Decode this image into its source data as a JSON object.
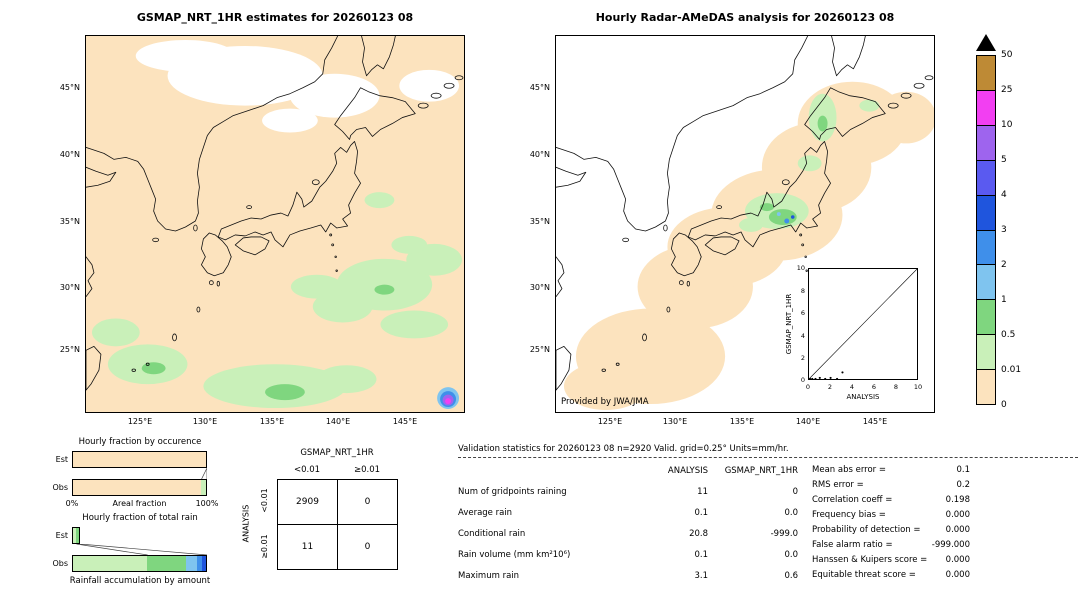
{
  "left_map": {
    "title": "GSMAP_NRT_1HR estimates for 20260123 08",
    "lat_ticks": [
      "45°N",
      "40°N",
      "35°N",
      "30°N",
      "25°N"
    ],
    "lon_ticks": [
      "125°E",
      "130°E",
      "135°E",
      "140°E",
      "145°E"
    ]
  },
  "right_map": {
    "title": "Hourly Radar-AMeDAS analysis for 20260123 08",
    "lat_ticks": [
      "45°N",
      "40°N",
      "35°N",
      "30°N",
      "25°N"
    ],
    "lon_ticks": [
      "125°E",
      "130°E",
      "135°E",
      "140°E",
      "145°E"
    ],
    "credit": "Provided by JWA/JMA",
    "inset": {
      "ylabel": "GSMAP_NRT_1HR",
      "xlabel": "ANALYSIS",
      "ticks": [
        "0",
        "2",
        "4",
        "6",
        "8",
        "10"
      ]
    }
  },
  "colorbar": {
    "labels": [
      "50",
      "25",
      "10",
      "5",
      "4",
      "3",
      "2",
      "1",
      "0.5",
      "0.01",
      "0"
    ],
    "colors_top_to_bottom": [
      "#BE8A35",
      "#F23FF2",
      "#9E64EE",
      "#5A5AF0",
      "#1F55DD",
      "#3F8FEA",
      "#7FC4EF",
      "#7FD67F",
      "#C9F0B9",
      "#FCE3BE"
    ],
    "overflow_arrow_color": "#000000"
  },
  "fraction_charts": {
    "occurrence": {
      "title": "Hourly fraction by occurence",
      "row_labels": [
        "Est",
        "Obs"
      ],
      "x_left": "0%",
      "x_right": "100%",
      "xlabel": "Areal fraction",
      "est": {
        "scale": 1.0,
        "segments": [
          {
            "color": "#FCE3BE",
            "frac": 1.0
          }
        ]
      },
      "obs": {
        "scale": 1.0,
        "segments": [
          {
            "color": "#FCE3BE",
            "frac": 0.96
          },
          {
            "color": "#C9F0B9",
            "frac": 0.04
          }
        ]
      },
      "connectors": [
        {
          "from": 1.0,
          "to": 0.96
        },
        {
          "from": 1.0,
          "to": 1.0
        }
      ]
    },
    "total_rain": {
      "title": "Hourly fraction of total rain",
      "row_labels": [
        "Est",
        "Obs"
      ],
      "caption": "Rainfall accumulation by amount",
      "est": {
        "scale": 0.06,
        "segments": [
          {
            "color": "#C9F0B9",
            "frac": 0.55
          },
          {
            "color": "#7FD67F",
            "frac": 0.45
          }
        ]
      },
      "obs": {
        "scale": 1.0,
        "segments": [
          {
            "color": "#C9F0B9",
            "frac": 0.56
          },
          {
            "color": "#7FD67F",
            "frac": 0.29
          },
          {
            "color": "#7FC4EF",
            "frac": 0.08
          },
          {
            "color": "#3F8FEA",
            "frac": 0.04
          },
          {
            "color": "#1F55DD",
            "frac": 0.03
          }
        ]
      },
      "connectors": [
        {
          "from": 0.033,
          "to": 0.56
        },
        {
          "from": 0.06,
          "to": 1.0
        }
      ]
    }
  },
  "contingency": {
    "col_group": "GSMAP_NRT_1HR",
    "row_group": "ANALYSIS",
    "col_labels": [
      "<0.01",
      "≥0.01"
    ],
    "row_labels": [
      "<0.01",
      "≥0.01"
    ],
    "values": [
      [
        "2909",
        "0"
      ],
      [
        "11",
        "0"
      ]
    ]
  },
  "stats": {
    "title": "Validation statistics for 20260123 08  n=2920 Valid. grid=0.25° Units=mm/hr.",
    "table": {
      "col_headers": [
        "ANALYSIS",
        "GSMAP_NRT_1HR"
      ],
      "rows": [
        {
          "label": "Num of gridpoints raining",
          "analysis": "11",
          "gsmap": "0"
        },
        {
          "label": "Average rain",
          "analysis": "0.1",
          "gsmap": "0.0"
        },
        {
          "label": "Conditional rain",
          "analysis": "20.8",
          "gsmap": "-999.0"
        },
        {
          "label": "Rain volume (mm km²10⁶)",
          "analysis": "0.1",
          "gsmap": "0.0"
        },
        {
          "label": "Maximum rain",
          "analysis": "3.1",
          "gsmap": "0.6"
        }
      ]
    },
    "metrics": [
      {
        "label": "Mean abs error =",
        "value": "0.1"
      },
      {
        "label": "RMS error =",
        "value": "0.2"
      },
      {
        "label": "Correlation coeff =",
        "value": "0.198"
      },
      {
        "label": "Frequency bias =",
        "value": "0.000"
      },
      {
        "label": "Probability of detection =",
        "value": "0.000"
      },
      {
        "label": "False alarm ratio =",
        "value": "-999.000"
      },
      {
        "label": "Hanssen & Kuipers score =",
        "value": "0.000"
      },
      {
        "label": "Equitable threat score =",
        "value": "0.000"
      }
    ]
  },
  "chart_data": [
    {
      "type": "heatmap",
      "name": "gsmap-estimate-map",
      "title": "GSMAP_NRT_1HR estimates for 20260123 08",
      "units": "mm/hr",
      "lon_ticks": [
        125,
        130,
        135,
        140,
        145
      ],
      "lat_ticks": [
        45,
        40,
        35,
        30,
        25
      ],
      "scale_breaks": [
        0,
        0.01,
        0.5,
        1,
        2,
        3,
        4,
        5,
        10,
        25,
        50
      ],
      "summary": "Field ~0 mm/hr (peach) over almost the whole Japan region; 0.01-0.5 mm/hr patches over the Pacific southeast of Japan, south of 30N and near Taiwan; one small intense cell (~5-10 mm/hr core) near 146E 23N; white no-data areas north of ~46N."
    },
    {
      "type": "heatmap",
      "name": "radar-amedas-map",
      "title": "Hourly Radar-AMeDAS analysis for 20260123 08",
      "units": "mm/hr",
      "summary": "White outside radar coverage; 0 mm/hr (peach) band along the Japanese archipelago; 0.01-0.5 mm/hr over central Honshu and western Hokkaido with small embedded cells up to ~3 mm/hr; maximum 3.1 mm/hr."
    },
    {
      "type": "scatter",
      "name": "inset-validation-scatter",
      "xlabel": "ANALYSIS",
      "ylabel": "GSMAP_NRT_1HR",
      "xlim": [
        0,
        10
      ],
      "ylim": [
        0,
        10
      ],
      "reference_line": "y = x",
      "points": [
        [
          0.1,
          0
        ],
        [
          0.3,
          0
        ],
        [
          0.6,
          0
        ],
        [
          1.0,
          0.1
        ],
        [
          1.5,
          0
        ],
        [
          2.0,
          0.1
        ],
        [
          2.6,
          0
        ],
        [
          3.1,
          0.6
        ]
      ]
    },
    {
      "type": "bar",
      "name": "hourly-fraction-by-occurrence",
      "title": "Hourly fraction by occurence",
      "categories": [
        "Est",
        "Obs"
      ],
      "note": "stacked areal fraction by rain-rate class, 0% to 100%",
      "est_fractions": {
        "0": 1.0
      },
      "obs_fractions": {
        "0": 0.96,
        "0.01-0.5": 0.04
      }
    },
    {
      "type": "bar",
      "name": "hourly-fraction-of-total-rain",
      "title": "Hourly fraction of total rain",
      "categories": [
        "Est",
        "Obs"
      ],
      "note": "bar length scaled by total rain volume; Est ~6% of Obs",
      "obs_fractions": {
        "0.01-0.5": 0.56,
        "0.5-1": 0.29,
        "1-2": 0.08,
        "2-3": 0.04,
        "3-4": 0.03
      }
    },
    {
      "type": "table",
      "name": "contingency-table",
      "row_dim": "ANALYSIS",
      "col_dim": "GSMAP_NRT_1HR",
      "col_labels": [
        "<0.01",
        "≥0.01"
      ],
      "row_labels": [
        "<0.01",
        "≥0.01"
      ],
      "values": [
        [
          2909,
          0
        ],
        [
          11,
          0
        ]
      ]
    },
    {
      "type": "table",
      "name": "validation-statistics",
      "n": 2920,
      "rows": [
        [
          "Num of gridpoints raining",
          11,
          0
        ],
        [
          "Average rain",
          0.1,
          0.0
        ],
        [
          "Conditional rain",
          20.8,
          -999.0
        ],
        [
          "Rain volume (mm km²10⁶)",
          0.1,
          0.0
        ],
        [
          "Maximum rain",
          3.1,
          0.6
        ]
      ],
      "metrics": {
        "mean_abs_error": 0.1,
        "rms_error": 0.2,
        "correlation_coeff": 0.198,
        "frequency_bias": 0.0,
        "probability_of_detection": 0.0,
        "false_alarm_ratio": -999.0,
        "hanssen_kuipers_score": 0.0,
        "equitable_threat_score": 0.0
      }
    }
  ]
}
